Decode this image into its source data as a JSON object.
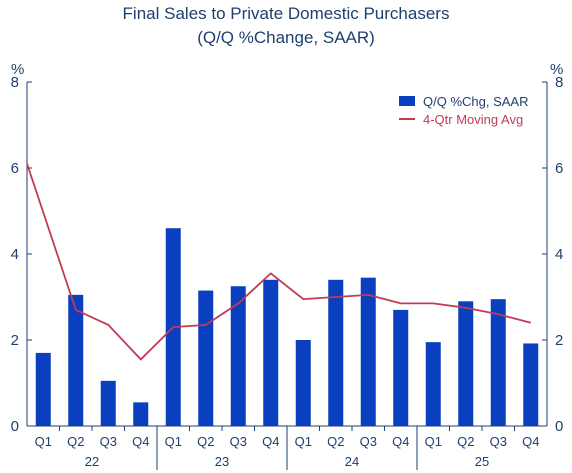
{
  "chart_data": {
    "type": "bar",
    "title": "Final Sales to Private Domestic Purchasers",
    "subtitle": "(Q/Q %Change, SAAR)",
    "ylabel_left": "%",
    "ylabel_right": "%",
    "ylim": [
      0,
      8
    ],
    "yticks": [
      0,
      2,
      4,
      6,
      8
    ],
    "categories": [
      "Q1",
      "Q2",
      "Q3",
      "Q4",
      "Q1",
      "Q2",
      "Q3",
      "Q4",
      "Q1",
      "Q2",
      "Q3",
      "Q4",
      "Q1",
      "Q2",
      "Q3",
      "Q4"
    ],
    "years": [
      {
        "label": "22",
        "start": 0,
        "end": 3
      },
      {
        "label": "23",
        "start": 4,
        "end": 7
      },
      {
        "label": "24",
        "start": 8,
        "end": 11
      },
      {
        "label": "25",
        "start": 12,
        "end": 15
      }
    ],
    "series": [
      {
        "name": "Q/Q %Chg, SAAR",
        "kind": "bar",
        "color": "#0a3fbf",
        "values": [
          1.7,
          3.05,
          1.05,
          0.55,
          4.6,
          3.15,
          3.25,
          3.4,
          2.0,
          3.4,
          3.45,
          2.7,
          1.95,
          2.9,
          2.95,
          1.92
        ]
      },
      {
        "name": "4-Qtr Moving Avg",
        "kind": "line",
        "color": "#c23b55",
        "values": [
          6.1,
          2.7,
          2.35,
          1.55,
          2.3,
          2.35,
          2.85,
          3.55,
          2.95,
          3.0,
          3.05,
          2.85,
          2.85,
          2.75,
          2.6,
          2.4
        ]
      }
    ],
    "legend_position": "top-right",
    "grid": false
  }
}
